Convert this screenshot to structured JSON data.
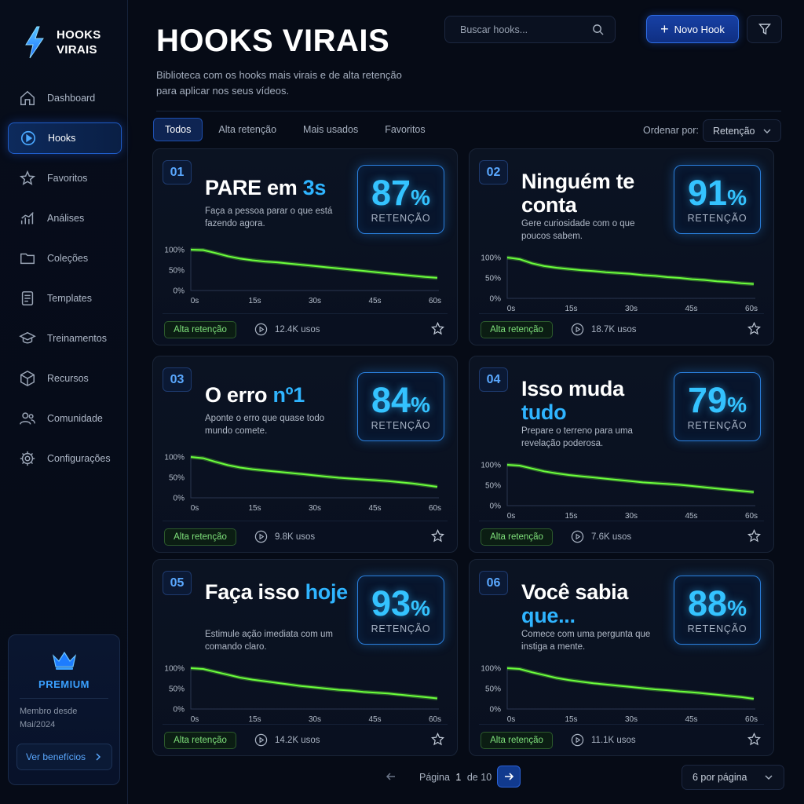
{
  "app": {
    "logo_line1": "HOOKS",
    "logo_line2": "VIRAIS"
  },
  "sidebar": {
    "items": [
      {
        "label": "Dashboard",
        "icon": "home-icon",
        "active": false
      },
      {
        "label": "Hooks",
        "icon": "play-circle-icon",
        "active": true
      },
      {
        "label": "Favoritos",
        "icon": "star-icon",
        "active": false
      },
      {
        "label": "Análises",
        "icon": "bar-chart-icon",
        "active": false
      },
      {
        "label": "Coleções",
        "icon": "folder-icon",
        "active": false
      },
      {
        "label": "Templates",
        "icon": "document-icon",
        "active": false
      },
      {
        "label": "Treinamentos",
        "icon": "graduation-cap-icon",
        "active": false
      },
      {
        "label": "Recursos",
        "icon": "cube-icon",
        "active": false
      },
      {
        "label": "Comunidade",
        "icon": "users-icon",
        "active": false
      },
      {
        "label": "Configurações",
        "icon": "gear-icon",
        "active": false
      }
    ],
    "premium": {
      "title": "PREMIUM",
      "member_line1": "Membro desde",
      "member_line2": "Mai/2024",
      "benefits_label": "Ver benefícios"
    }
  },
  "header": {
    "title": "HOOKS VIRAIS",
    "subtitle": "Biblioteca com os hooks mais virais e de alta retenção para aplicar nos seus vídeos.",
    "search_placeholder": "Buscar hooks...",
    "new_button": "Novo Hook"
  },
  "tabs": [
    "Todos",
    "Alta retenção",
    "Mais usados",
    "Favoritos"
  ],
  "active_tab": 0,
  "sort": {
    "label": "Ordenar por:",
    "value": "Retenção"
  },
  "chart_axis": {
    "y_ticks": [
      "100%",
      "50%",
      "0%"
    ],
    "x_ticks": [
      "0s",
      "15s",
      "30s",
      "45s",
      "60s"
    ]
  },
  "cards": [
    {
      "num": "01",
      "title_a": "PARE em ",
      "title_b": "3s",
      "desc": "Faça a pessoa parar o que está fazendo agora.",
      "retention": "87",
      "ret_label": "RETENÇÃO",
      "badge": "Alta retenção",
      "uses": "12.4K usos",
      "curve": [
        100,
        99,
        92,
        84,
        78,
        74,
        71,
        69,
        66,
        63,
        60,
        57,
        54,
        51,
        48,
        45,
        42,
        39,
        36,
        33,
        31
      ]
    },
    {
      "num": "02",
      "title_a": "Ninguém te conta",
      "title_b": "",
      "desc": "Gere curiosidade com o que poucos sabem.",
      "retention": "91",
      "ret_label": "RETENÇÃO",
      "badge": "Alta retenção",
      "uses": "18.7K usos",
      "curve": [
        100,
        96,
        86,
        79,
        75,
        72,
        69,
        67,
        64,
        62,
        60,
        57,
        55,
        52,
        50,
        47,
        45,
        42,
        40,
        37,
        35
      ]
    },
    {
      "num": "03",
      "title_a": "O erro ",
      "title_b": "nº1",
      "desc": "Aponte o erro que quase todo mundo comete.",
      "retention": "84",
      "ret_label": "RETENÇÃO",
      "badge": "Alta retenção",
      "uses": "9.8K usos",
      "curve": [
        100,
        97,
        88,
        80,
        74,
        70,
        67,
        64,
        61,
        58,
        55,
        52,
        49,
        47,
        45,
        43,
        41,
        38,
        35,
        31,
        27
      ]
    },
    {
      "num": "04",
      "title_a": "Isso muda ",
      "title_b": "tudo",
      "desc": "Prepare o terreno para uma revelação poderosa.",
      "retention": "79",
      "ret_label": "RETENÇÃO",
      "badge": "Alta retenção",
      "uses": "7.6K usos",
      "curve": [
        100,
        98,
        91,
        84,
        79,
        75,
        72,
        69,
        66,
        63,
        60,
        57,
        55,
        53,
        51,
        48,
        45,
        42,
        39,
        36,
        33
      ]
    },
    {
      "num": "05",
      "title_a": "Faça isso ",
      "title_b": "hoje",
      "desc": "Estimule ação imediata com um comando claro.",
      "retention": "93",
      "ret_label": "RETENÇÃO",
      "badge": "Alta retenção",
      "uses": "14.2K usos",
      "curve": [
        100,
        98,
        91,
        84,
        77,
        72,
        68,
        64,
        60,
        56,
        53,
        50,
        47,
        45,
        42,
        40,
        38,
        35,
        32,
        29,
        26
      ]
    },
    {
      "num": "06",
      "title_a": "Você sabia ",
      "title_b": "que...",
      "desc": "Comece com uma pergunta que instiga a mente.",
      "retention": "88",
      "ret_label": "RETENÇÃO",
      "badge": "Alta retenção",
      "uses": "11.1K usos",
      "curve": [
        100,
        98,
        90,
        83,
        76,
        71,
        67,
        63,
        60,
        57,
        54,
        51,
        48,
        46,
        43,
        41,
        38,
        35,
        32,
        29,
        25
      ]
    }
  ],
  "pagination": {
    "label": "Página",
    "current": "1",
    "of": "de",
    "total": "10",
    "per_page": "6 por página"
  },
  "colors": {
    "accent": "#2fb4ff",
    "curve": "#6cff3c",
    "badge": "#7ee07a"
  }
}
